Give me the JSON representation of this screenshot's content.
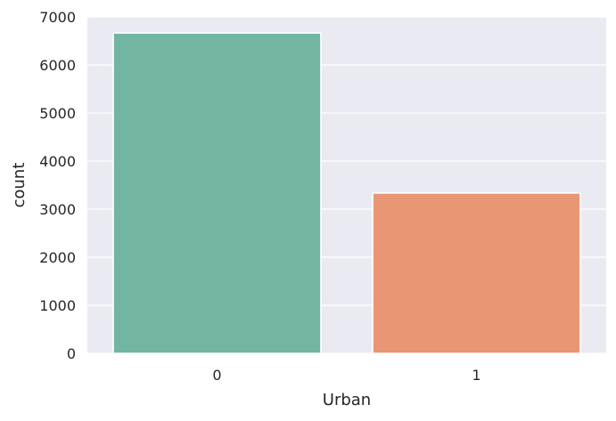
{
  "chart_data": {
    "type": "bar",
    "title": "",
    "xlabel": "Urban",
    "ylabel": "count",
    "categories": [
      "0",
      "1"
    ],
    "values": [
      6665,
      3335
    ],
    "ylim": [
      0,
      7000
    ],
    "yticks": [
      0,
      1000,
      2000,
      3000,
      4000,
      5000,
      6000,
      7000
    ],
    "grid": true,
    "colors": [
      "#72b6a1",
      "#e99675"
    ],
    "background_color": "#eaeaf2",
    "grid_color": "#ffffff",
    "legend": "none"
  }
}
